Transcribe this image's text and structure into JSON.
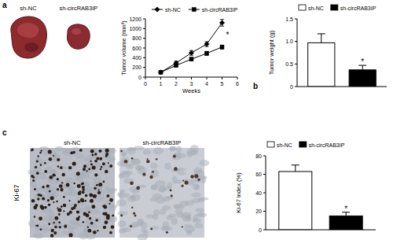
{
  "figure": {
    "panel_labels": [
      "a",
      "b",
      "c"
    ],
    "tumor_image_labels": [
      "sh-NC",
      "sh-circRAB3IP"
    ],
    "ihc_image_labels": [
      "sh-NC",
      "sh-circRAB3IP"
    ],
    "ihc_stain": "Ki-67"
  },
  "chart_data": [
    {
      "type": "line",
      "x_label": "Weeks",
      "y_label": "Tumor volume (mm³)",
      "x": [
        1,
        2,
        3,
        4,
        5
      ],
      "xlim": [
        0,
        6
      ],
      "xticks": [
        0,
        1,
        2,
        3,
        4,
        5,
        6
      ],
      "ylim": [
        0,
        1200
      ],
      "yticks": [
        0,
        200,
        400,
        600,
        800,
        1000,
        1200
      ],
      "legend": "top",
      "grid": false,
      "series": [
        {
          "name": "sh-NC",
          "color": "#000000",
          "marker": "diamond",
          "values": [
            100,
            290,
            500,
            680,
            1120
          ],
          "errors": [
            10,
            40,
            50,
            50,
            70
          ]
        },
        {
          "name": "sh-circRAB3IP",
          "color": "#000000",
          "marker": "square",
          "values": [
            100,
            240,
            370,
            490,
            620
          ],
          "errors": [
            10,
            30,
            30,
            40,
            40
          ]
        }
      ],
      "annotations": [
        {
          "text": "*",
          "x": 5
        }
      ]
    },
    {
      "type": "bar",
      "y_label": "Tumor weight (g)",
      "categories": [
        null
      ],
      "ylim": [
        0,
        1.5
      ],
      "yticks": [
        0,
        0.5,
        {
          "value": 1,
          "label": "1.0"
        },
        1.5
      ],
      "legend": "top",
      "grid": false,
      "tick_labels": "y",
      "series": [
        {
          "name": "sh-NC",
          "color": "#ffffff",
          "values": [
            0.97
          ],
          "errors": [
            0.2
          ]
        },
        {
          "name": "sh-circRAB3IP",
          "color": "#000000",
          "values": [
            0.37
          ],
          "errors": [
            0.1
          ]
        }
      ],
      "annotations": [
        {
          "text": "*",
          "series": "sh-circRAB3IP"
        }
      ]
    },
    {
      "type": "bar",
      "y_label": "Ki-67 index (%)",
      "categories": [
        null
      ],
      "ylim": [
        0,
        80
      ],
      "yticks": [
        0,
        20,
        40,
        60,
        80
      ],
      "legend": "top",
      "grid": false,
      "tick_labels": "y",
      "series": [
        {
          "name": "sh-NC",
          "color": "#ffffff",
          "values": [
            63
          ],
          "errors": [
            7
          ]
        },
        {
          "name": "sh-circRAB3IP",
          "color": "#000000",
          "values": [
            15
          ],
          "errors": [
            4
          ]
        }
      ],
      "annotations": [
        {
          "text": "*",
          "series": "sh-circRAB3IP"
        }
      ]
    }
  ]
}
